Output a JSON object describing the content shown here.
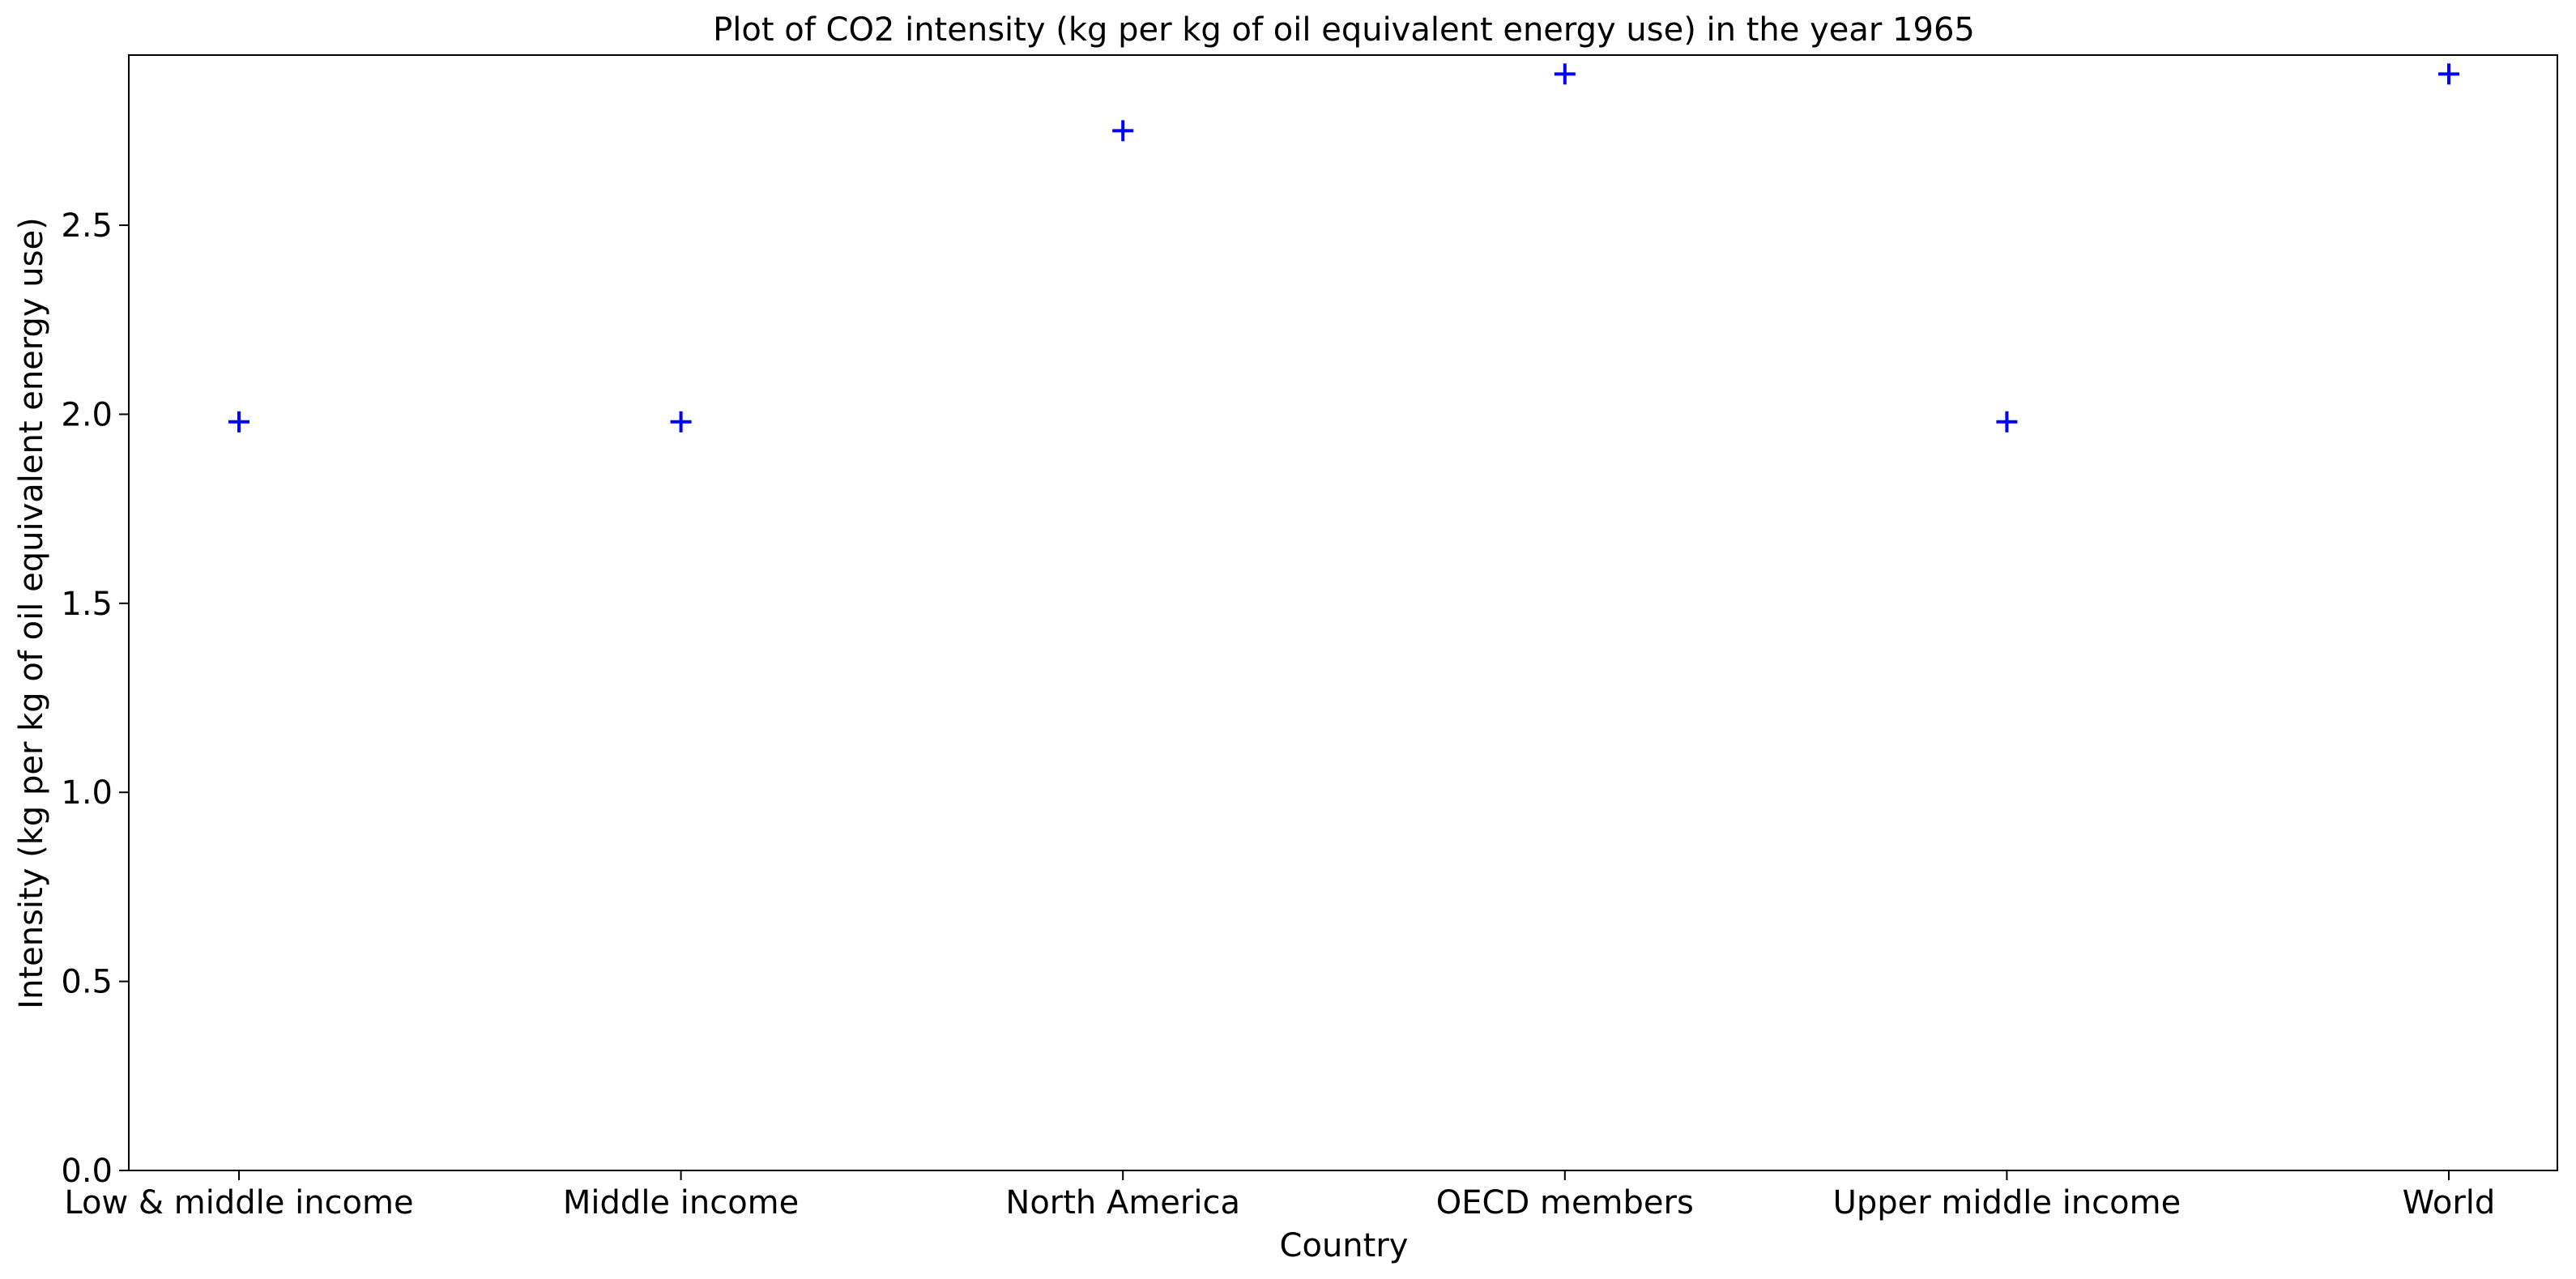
{
  "chart_data": {
    "type": "scatter",
    "title": "Plot of CO2 intensity (kg per kg of oil equivalent energy use) in the year 1965",
    "xlabel": "Country",
    "ylabel": "Intensity (kg per kg of oil equivalent energy use)",
    "categories": [
      "Low & middle income",
      "Middle income",
      "North America",
      "OECD members",
      "Upper middle income",
      "World"
    ],
    "series": [
      {
        "marker": "+",
        "color": "#0000ff",
        "values": [
          1.98,
          1.98,
          2.75,
          2.9,
          1.98,
          2.9
        ]
      }
    ],
    "ylim": [
      0,
      2.95
    ],
    "yticks": [
      0.0,
      0.5,
      1.0,
      1.5,
      2.0,
      2.5
    ],
    "ytick_labels": [
      "0.0",
      "0.5",
      "1.0",
      "1.5",
      "2.0",
      "2.5"
    ],
    "grid": false,
    "legend": "none"
  }
}
